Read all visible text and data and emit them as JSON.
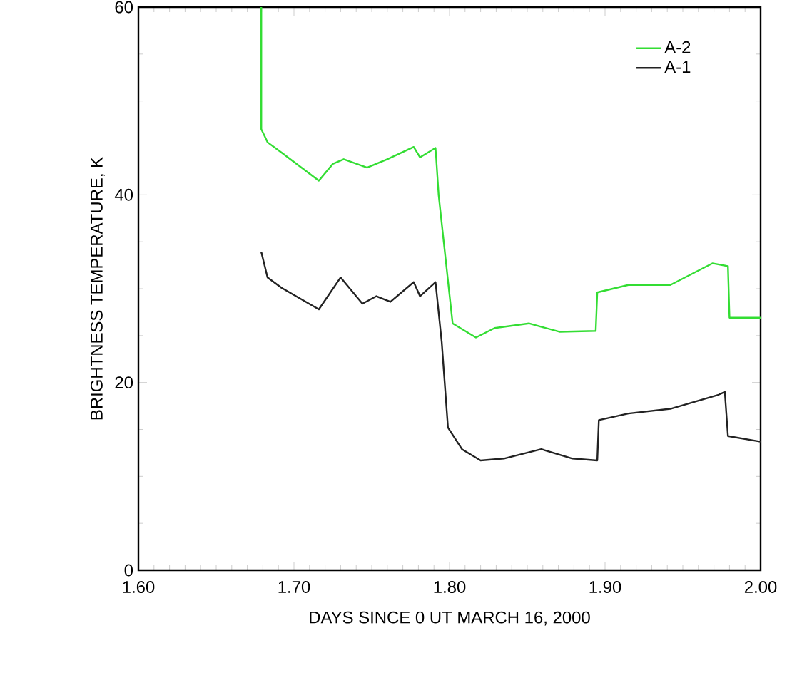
{
  "chart_data": {
    "type": "line",
    "xlabel": "DAYS SINCE 0 UT MARCH 16, 2000",
    "ylabel": "BRIGHTNESS TEMPERATURE, K",
    "xlim": [
      1.6,
      2.0
    ],
    "xticks": [
      {
        "value": 1.6,
        "label": "1.60"
      },
      {
        "value": 1.7,
        "label": "1.70"
      },
      {
        "value": 1.8,
        "label": "1.80"
      },
      {
        "value": 1.9,
        "label": "1.90"
      },
      {
        "value": 2.0,
        "label": "2.00"
      }
    ],
    "ylim": [
      0,
      60
    ],
    "yticks": [
      0,
      20,
      40,
      60
    ],
    "grid": false,
    "legend": "top right",
    "line_style": "solid",
    "marker": "none",
    "series": [
      {
        "name": "A-2",
        "color": "#33dd33",
        "x": [
          1.679,
          1.679,
          1.683,
          1.692,
          1.716,
          1.725,
          1.732,
          1.747,
          1.76,
          1.777,
          1.781,
          1.791,
          1.793,
          1.802,
          1.817,
          1.829,
          1.851,
          1.871,
          1.894,
          1.895,
          1.915,
          1.942,
          1.969,
          1.979,
          1.98,
          2.0
        ],
        "values": [
          60,
          47,
          45.6,
          44.5,
          41.5,
          43.3,
          43.8,
          42.9,
          43.8,
          45.1,
          44,
          45,
          40,
          26.3,
          24.8,
          25.8,
          26.3,
          25.4,
          25.5,
          29.6,
          30.4,
          30.4,
          32.7,
          32.4,
          26.9,
          26.9
        ]
      },
      {
        "name": "A-1",
        "color": "#222222",
        "x": [
          1.679,
          1.683,
          1.692,
          1.716,
          1.73,
          1.744,
          1.753,
          1.762,
          1.777,
          1.781,
          1.791,
          1.795,
          1.799,
          1.808,
          1.82,
          1.835,
          1.859,
          1.879,
          1.895,
          1.896,
          1.915,
          1.942,
          1.973,
          1.977,
          1.979,
          2.0
        ],
        "values": [
          33.9,
          31.2,
          30.1,
          27.8,
          31.2,
          28.4,
          29.2,
          28.6,
          30.7,
          29.2,
          30.7,
          24.3,
          15.2,
          12.9,
          11.7,
          11.9,
          12.9,
          11.9,
          11.7,
          16,
          16.7,
          17.2,
          18.7,
          19,
          14.3,
          13.7
        ]
      }
    ]
  }
}
